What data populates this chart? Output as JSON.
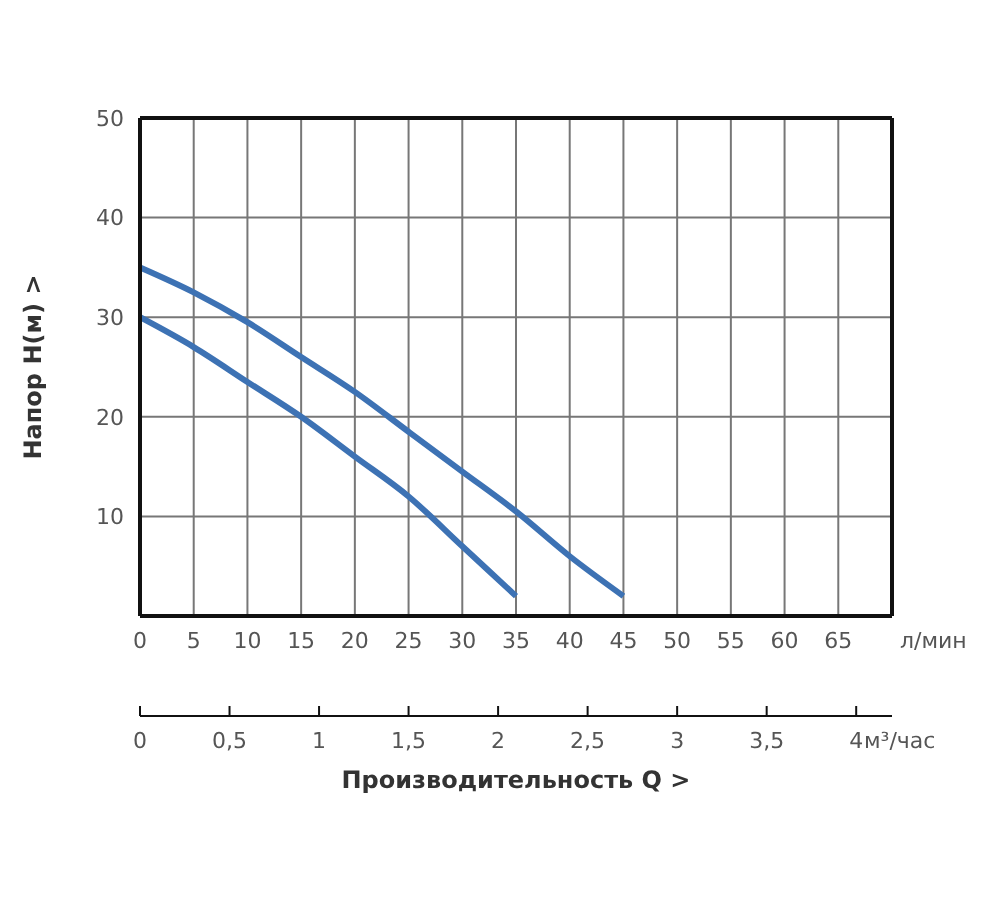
{
  "chart_data": {
    "type": "line",
    "ylabel": "Напор   H(м)  >",
    "xlabel": "л/мин",
    "x2label": "Производительность Q  >",
    "annotations": [
      "м³/час"
    ],
    "xlim": [
      0,
      70
    ],
    "xticks": [
      0,
      5,
      10,
      15,
      20,
      25,
      30,
      35,
      40,
      45,
      50,
      55,
      60,
      65
    ],
    "ylim": [
      0,
      50
    ],
    "yticks": [
      {
        "value": 0,
        "label": null
      },
      10,
      20,
      30,
      40,
      50
    ],
    "x2lim": [
      0,
      4.2
    ],
    "x2ticks": [
      0,
      {
        "value": 0.5,
        "label": "0,5"
      },
      1,
      {
        "value": 1.5,
        "label": "1,5"
      },
      2,
      {
        "value": 2.5,
        "label": "2,5"
      },
      3,
      {
        "value": 3.5,
        "label": "3,5"
      },
      4
    ],
    "grid": true,
    "series": [
      {
        "color": "#3d72b4",
        "x": [
          0,
          5,
          10,
          15,
          20,
          25,
          30,
          35
        ],
        "values": [
          30,
          27,
          23.5,
          20,
          16,
          12,
          7,
          2
        ]
      },
      {
        "color": "#3d72b4",
        "x": [
          0,
          5,
          10,
          15,
          20,
          25,
          30,
          35,
          40,
          45
        ],
        "values": [
          35,
          32.5,
          29.5,
          26,
          22.5,
          18.5,
          14.5,
          10.5,
          6,
          2
        ]
      }
    ]
  }
}
